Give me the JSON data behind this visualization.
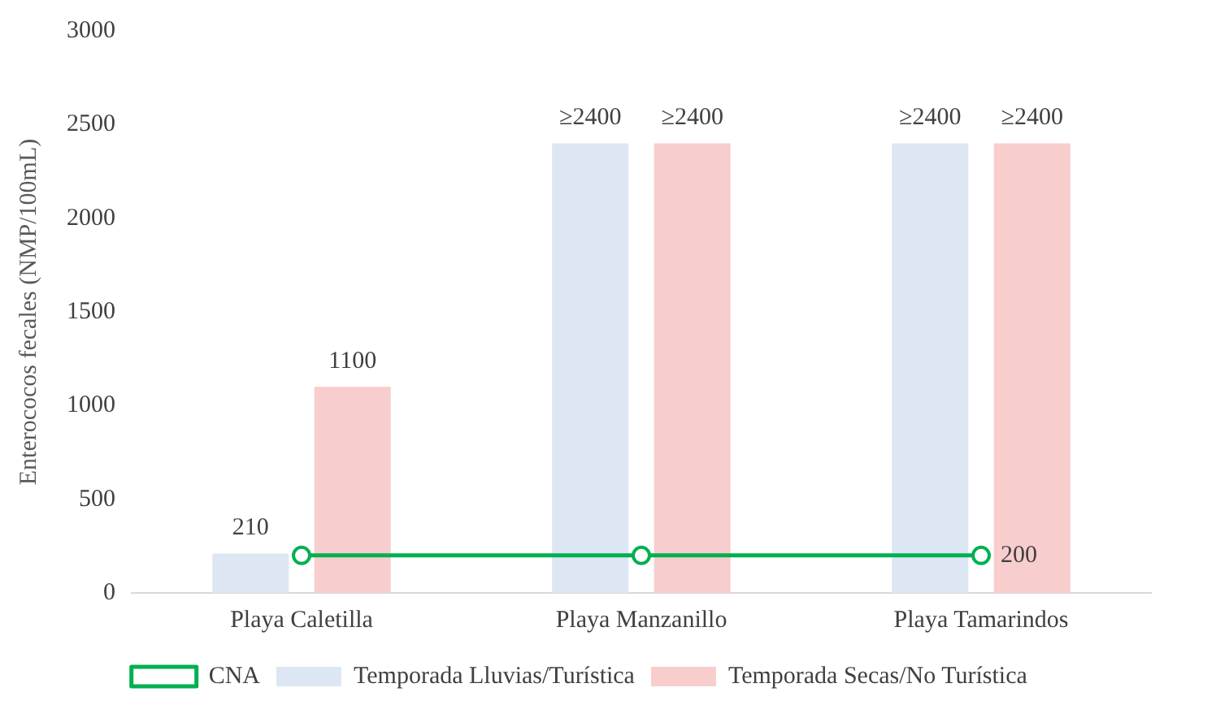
{
  "chart_data": {
    "type": "bar",
    "ylabel": "Enterococos fecales (NMP/100mL)",
    "categories": [
      "Playa Caletilla",
      "Playa Manzanillo",
      "Playa Tamarindos"
    ],
    "series": [
      {
        "name": "Temporada Lluvias/Turística",
        "color": "#dce7f3",
        "values": [
          210,
          2400,
          2400
        ],
        "value_labels": [
          "210",
          "≥2400",
          "≥2400"
        ]
      },
      {
        "name": "Temporada Secas/No Turística",
        "color": "#f8cdcd",
        "values": [
          1100,
          2400,
          2400
        ],
        "value_labels": [
          "1100",
          "≥2400",
          "≥2400"
        ]
      },
      {
        "name": "CNA",
        "type": "line",
        "color": "#00b050",
        "marker": "circle",
        "values": [
          200,
          200,
          200
        ],
        "value_labels": [
          null,
          null,
          "200"
        ]
      }
    ],
    "ylim": [
      0,
      3000
    ],
    "yticks": [
      0,
      500,
      1000,
      1500,
      2000,
      2500,
      3000
    ],
    "grid": false,
    "legend": "bottom"
  }
}
